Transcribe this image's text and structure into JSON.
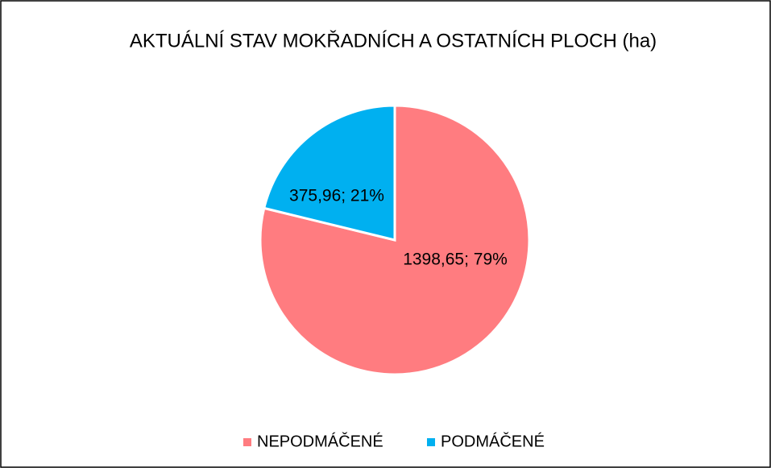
{
  "chart_data": {
    "type": "pie",
    "title": "AKTUÁLNÍ STAV MOKŘADNÍCH A OSTATNÍCH PLOCH (ha)",
    "categories": [
      "NEPODMÁČENÉ",
      "PODMÁČENÉ"
    ],
    "values": [
      1398.65,
      375.96
    ],
    "value_labels": [
      "1398,65; 79%",
      "375,96; 21%"
    ],
    "colors": [
      "#ff7c80",
      "#00b0f0"
    ],
    "legend": "bottom"
  }
}
